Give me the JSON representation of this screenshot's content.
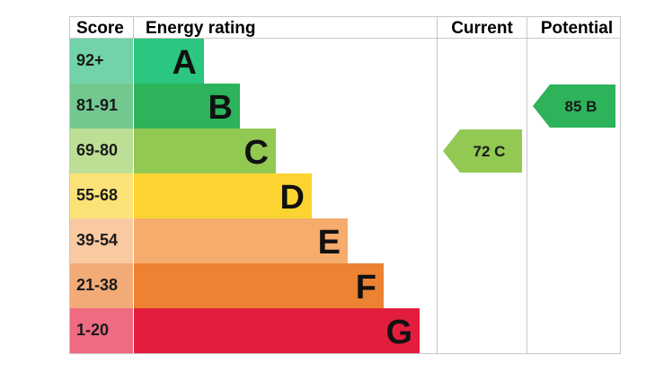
{
  "headers": {
    "score": "Score",
    "rating": "Energy rating",
    "current": "Current",
    "potential": "Potential"
  },
  "chart_data": {
    "type": "bar",
    "bands": [
      {
        "band": "A",
        "score_range": "92+",
        "bar_color": "#2bc67f",
        "score_color": "#71d3a7"
      },
      {
        "band": "B",
        "score_range": "81-91",
        "bar_color": "#2db35a",
        "score_color": "#73c890"
      },
      {
        "band": "C",
        "score_range": "69-80",
        "bar_color": "#92c953",
        "score_color": "#bcde95"
      },
      {
        "band": "D",
        "score_range": "55-68",
        "bar_color": "#fcd432",
        "score_color": "#fde277"
      },
      {
        "band": "E",
        "score_range": "39-54",
        "bar_color": "#f6ac6d",
        "score_color": "#f9c9a1"
      },
      {
        "band": "F",
        "score_range": "21-38",
        "bar_color": "#ec8232",
        "score_color": "#f2ab77"
      },
      {
        "band": "G",
        "score_range": "1-20",
        "bar_color": "#e31d3d",
        "score_color": "#ee6b82"
      }
    ],
    "current": {
      "value": 72,
      "band": "C",
      "label": "72  C"
    },
    "potential": {
      "value": 85,
      "band": "B",
      "label": "85  B"
    }
  }
}
